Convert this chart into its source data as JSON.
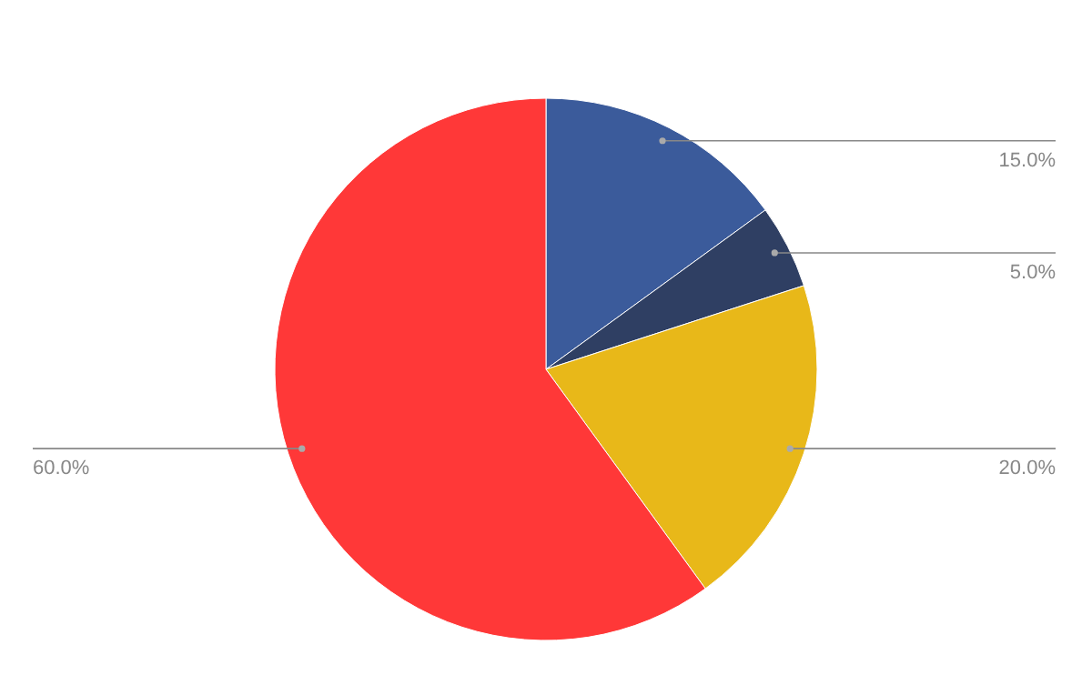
{
  "chart_data": {
    "type": "pie",
    "categories": [
      null,
      null,
      null,
      null
    ],
    "values": [
      15,
      5,
      20,
      60
    ],
    "colors": [
      "#3b5b9b",
      "#2f3f63",
      "#e8b819",
      "#ff3838"
    ],
    "value_labels": [
      "15.0%",
      "5.0%",
      "20.0%",
      "60.0%"
    ]
  }
}
